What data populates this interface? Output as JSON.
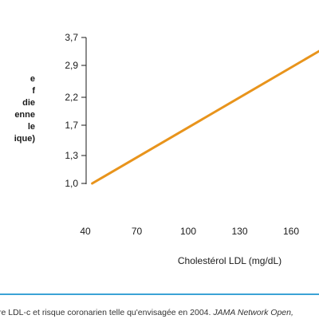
{
  "colors": {
    "line": "#e8941c",
    "axis": "#1a1a1a",
    "caption_rule": "#3ba3d6"
  },
  "chart_data": {
    "type": "line",
    "ylabel": "e\nf\ndie\nenne\nle\nique)",
    "xlabel": "Cholestérol LDL (mg/dL)",
    "x_ticks": [
      40,
      70,
      100,
      130,
      160
    ],
    "x_tick_labels": [
      "40",
      "70",
      "100",
      "130",
      "160"
    ],
    "y_tick_labels": [
      "1,0",
      "1,3",
      "1,7",
      "2,2",
      "2,9",
      "3,7"
    ],
    "x": [
      44,
      190
    ],
    "y": [
      1.0,
      3.7
    ],
    "xlim": [
      40,
      190
    ],
    "grid": false,
    "legend": "none"
  },
  "caption": {
    "text": "re LDL-c et risque coronarien telle qu'envisagée en 2004. ",
    "journal": "JAMA Network Open,"
  }
}
